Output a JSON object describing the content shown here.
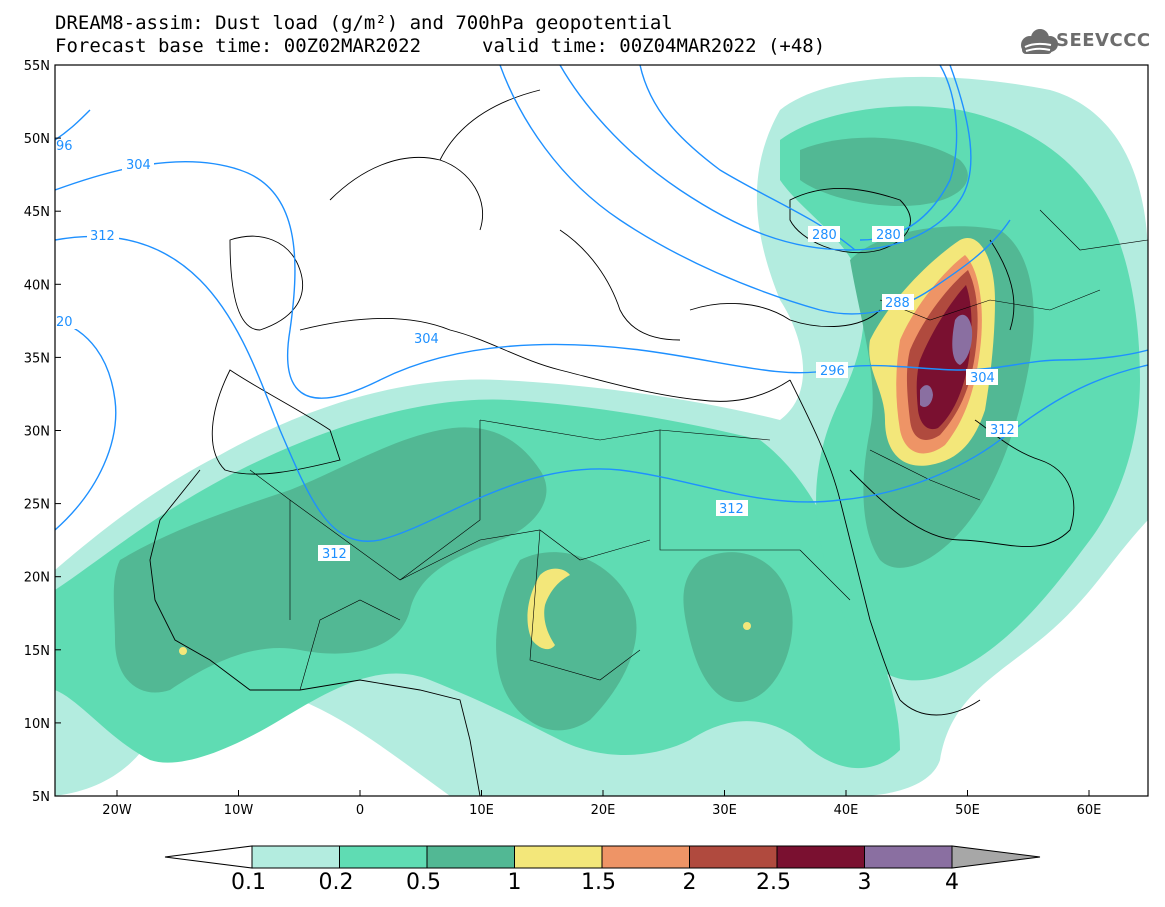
{
  "title": {
    "line1": "DREAM8-assim: Dust load (g/m²) and 700hPa geopotential",
    "line2a": "Forecast base time: 00Z02MAR2022",
    "line2b": "valid time: 00Z04MAR2022 (+48)"
  },
  "logo": {
    "text": "SEEVCCC",
    "icon": "cloud-icon"
  },
  "axes": {
    "lat_labels": [
      "55N",
      "50N",
      "45N",
      "40N",
      "35N",
      "30N",
      "25N",
      "20N",
      "15N",
      "10N",
      "5N"
    ],
    "lon_labels": [
      "20W",
      "10W",
      "0",
      "10E",
      "20E",
      "30E",
      "40E",
      "50E",
      "60E"
    ]
  },
  "colorbar": {
    "labels": [
      "0.1",
      "0.2",
      "0.5",
      "1",
      "1.5",
      "2",
      "2.5",
      "3",
      "4"
    ],
    "colors": [
      "#b3ecdf",
      "#5fdcb3",
      "#52b894",
      "#f3e77a",
      "#ee9466",
      "#b04a3e",
      "#7a1030",
      "#8a6fa1",
      "#a7a7a7"
    ]
  },
  "contour_labels": [
    "304",
    "312",
    "20",
    "304",
    "312",
    "312",
    "296",
    "288",
    "280",
    "280",
    "304",
    "312",
    "96"
  ]
}
